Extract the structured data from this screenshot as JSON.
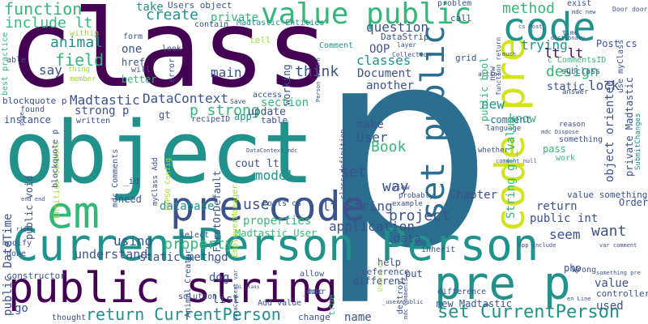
{
  "palette": {
    "dark_purple": "#440154",
    "indigo": "#3b528b",
    "steel_blue": "#2c6e8f",
    "teal": "#21918c",
    "green": "#35b779",
    "lime": "#a0da39",
    "yellow": "#d2e21b",
    "purple": "#482878"
  },
  "words": {
    "class": "class",
    "p": "p",
    "object": "object",
    "current_person_person": "CurrentPerson Person",
    "public_string": "public string",
    "em": "em",
    "pre_code": "pre code",
    "pre_p": "pre p",
    "code_pre": "code pre",
    "value_public": "value public",
    "code": "code",
    "set_public": "set public",
    "return_current_person": "return CurrentPerson",
    "set_current_person": "set CurrentPerson",
    "method": "method",
    "function": "function",
    "include_lt": "include lt",
    "animal": "animal",
    "field": "field",
    "say": "say",
    "create": "create",
    "take": "take",
    "users_object": "Users object",
    "private": "private",
    "madtastic_entities": "Madtastic Entities",
    "question": "question",
    "oop": "OOP",
    "classes": "classes",
    "think": "think",
    "document": "Document",
    "another": "another",
    "trying": "trying",
    "lt_lt": "lt lt",
    "design": "design",
    "lock": "lock",
    "datastrip": "DataStrip",
    "comment": "Comment",
    "post_cs": "Post cs",
    "c_comments_id": "c CommentsID",
    "use": "use",
    "new": "new",
    "know": "know",
    "make": "make",
    "user": "User",
    "book": "Book",
    "madtastic": "Madtastic",
    "datacontext": "DataContext",
    "p_strong": "p strong",
    "strong_p": "strong p",
    "blockquote_p": "blockquote p",
    "found": "found",
    "instance": "instance",
    "public_void": "public void",
    "public_datetime": "public DateTime",
    "main": "main",
    "section": "section",
    "update": "update",
    "table": "table",
    "cout_lt": "cout lt",
    "model": "model",
    "database": "database",
    "using": "using",
    "property": "property",
    "properties": "properties",
    "static_method": "static method",
    "understand": "understand",
    "lt_string": "lt String",
    "project": "project",
    "application": "application",
    "data": "data",
    "set": "set",
    "way": "way",
    "chapter": "Chapter",
    "return": "return",
    "public_int": "public int",
    "seem": "seem",
    "want": "want",
    "value_something": "value something",
    "value": "value",
    "used": "used",
    "order": "Order",
    "controller": "controller",
    "new_madtastic": "new Madtastic",
    "madtastic_user": "Madtastic User",
    "list": "list",
    "name": "name",
    "dog": "dog",
    "go": "go",
    "constructor": "constructor",
    "done": "done",
    "modify": "modify",
    "one": "one",
    "href": "href",
    "better": "better",
    "able": "able",
    "member": "member",
    "thing": "thing",
    "within": "within",
    "posts_cs": "Posts cs",
    "help": "help",
    "reference": "reference",
    "different": "different",
    "put": "put",
    "php": "php",
    "wrong": "Wrong",
    "cat": "cat",
    "change": "change",
    "add_value": "Add value",
    "select_c": "select c",
    "need": "need",
    "id": "_id",
    "static": "static",
    "subclass": "subclass",
    "object_oriented": "object oriented",
    "private_madtastic": "private Madtastic",
    "comment_lower": "_comment",
    "string_gt_value": "String gt_value",
    "public_bool": "public bool",
    "working": "working",
    "problem": "problem",
    "exist": "exist",
    "call": "call",
    "door_door": "Door door",
    "mdc_new": "mdc new",
    "now": "now",
    "function_return": "function return",
    "grid": "grid",
    "much": "much",
    "use_myclass": "use myClass",
    "best_practice": "best practice",
    "form": "form",
    "error": "error",
    "contain": "contain",
    "tell": "tell",
    "look": "look",
    "will": "will",
    "recipeid": "recipeID",
    "access": "access",
    "app": "app",
    "save": "Save",
    "gt": "gt",
    "myclass_add": "myClass Add",
    "phpso_config": "PHPSO Config",
    "mdc_comments": "mdc Comments",
    "entities_comment": "Entities Comment",
    "employermanager": "EmployerManager",
    "c_firstordefault": "c FirstOrDefault",
    "datacontext_mdc": "DataContext mdc",
    "class_definition": "class definition",
    "user_public": "_user public",
    "solution": "solution",
    "allow": "allow",
    "door": "door",
    "mdc": "_mdc",
    "destroy": "destroy",
    "true": "true",
    "thought": "thought",
    "animal_creator": "Animal Creator",
    "datacontext_var": "DataContext var",
    "sql_class": "SQL class",
    "end_end": "end end",
    "written": "written",
    "right": "right",
    "probably": "probably",
    "example": "example",
    "view": "view",
    "inherit": "inherit",
    "hpp_include": "hpp include",
    "language": "language",
    "whether": "whether",
    "reason": "reason",
    "mdc_dispose": "mdc Dispose",
    "pass": "pass",
    "work": "work",
    "something": "something",
    "comment_null": "comment null",
    "answer": "answer",
    "action": "action",
    "layer": "layer",
    "collection": "Collection",
    "dictionary": "dictionary",
    "time": "time",
    "submit_changes": "SubmitChanges",
    "cs_post": "cs Post",
    "var_comment": "var comment",
    "something_pre": "something pre",
    "difference": "difference",
    "users_cs": "Users cs",
    "en_line": "en Line",
    "person_return": "Person return",
    "mdc_comments2": "mdc Comments",
    "page": "page"
  }
}
